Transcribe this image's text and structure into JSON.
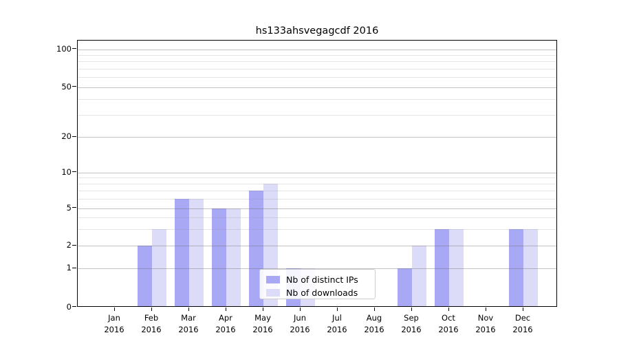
{
  "title": "hs133ahsvegagcdf 2016",
  "colors": {
    "distinct_ips_bar": "#a8a8f5",
    "downloads_bar": "#dcdcf8",
    "axis": "#000000",
    "legend_border": "#cccccc"
  },
  "legend": {
    "items": [
      {
        "label": "Nb of distinct IPs",
        "color": "#a8a8f5"
      },
      {
        "label": "Nb of downloads",
        "color": "#dcdcf8"
      }
    ]
  },
  "chart_data": {
    "type": "bar",
    "title": "hs133ahsvegagcdf 2016",
    "categories": [
      "Jan 2016",
      "Feb 2016",
      "Mar 2016",
      "Apr 2016",
      "May 2016",
      "Jun 2016",
      "Jul 2016",
      "Aug 2016",
      "Sep 2016",
      "Oct 2016",
      "Nov 2016",
      "Dec 2016"
    ],
    "series": [
      {
        "name": "Nb of distinct IPs",
        "color": "#a8a8f5",
        "values": [
          0,
          2,
          6,
          5,
          7,
          1,
          0,
          0,
          1,
          3,
          0,
          3
        ]
      },
      {
        "name": "Nb of downloads",
        "color": "#dcdcf8",
        "values": [
          0,
          3,
          6,
          5,
          8,
          1,
          0,
          0,
          2,
          3,
          0,
          3
        ]
      }
    ],
    "xlabel": "",
    "ylabel": "",
    "yscale": "symlog",
    "ylim": [
      0,
      110
    ],
    "y_major_ticks": [
      0,
      1,
      2,
      5,
      10,
      20,
      50,
      100
    ],
    "y_minor_ticks": [
      3,
      4,
      6,
      7,
      8,
      9,
      30,
      40,
      60,
      70,
      80,
      90
    ],
    "grid": "horizontal-major-and-minor",
    "legend_position": "inside-lower-center"
  }
}
